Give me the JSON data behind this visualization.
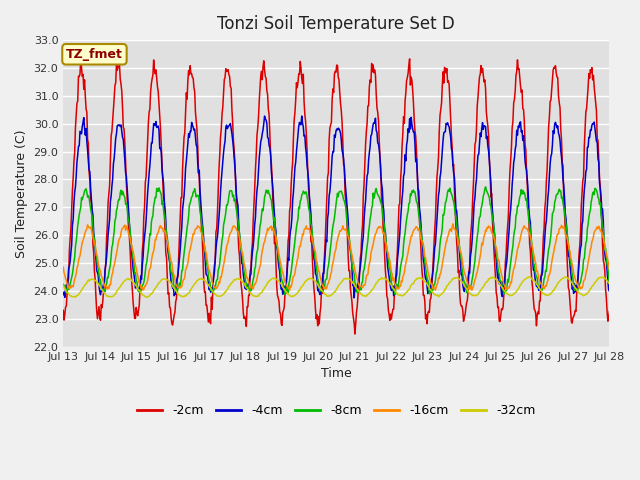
{
  "title": "Tonzi Soil Temperature Set D",
  "xlabel": "Time",
  "ylabel": "Soil Temperature (C)",
  "annotation": "TZ_fmet",
  "ylim": [
    22.0,
    33.0
  ],
  "yticks": [
    22.0,
    23.0,
    24.0,
    25.0,
    26.0,
    27.0,
    28.0,
    29.0,
    30.0,
    31.0,
    32.0,
    33.0
  ],
  "xtick_labels": [
    "Jul 13",
    "Jul 14",
    "Jul 15",
    "Jul 16",
    "Jul 17",
    "Jul 18",
    "Jul 19",
    "Jul 20",
    "Jul 21",
    "Jul 22",
    "Jul 23",
    "Jul 24",
    "Jul 25",
    "Jul 26",
    "Jul 27",
    "Jul 28"
  ],
  "n_days": 15,
  "points_per_day": 48,
  "series_order": [
    "-2cm",
    "-4cm",
    "-8cm",
    "-16cm",
    "-32cm"
  ],
  "series": {
    "-2cm": {
      "color": "#dd0000",
      "base": 27.5,
      "amp": 4.5,
      "phase": 0.0,
      "trend": 0.0
    },
    "-4cm": {
      "color": "#0000cc",
      "base": 27.0,
      "amp": 3.0,
      "phase": 0.25,
      "trend": 0.0
    },
    "-8cm": {
      "color": "#00bb00",
      "base": 25.8,
      "amp": 1.8,
      "phase": 0.7,
      "trend": 0.0
    },
    "-16cm": {
      "color": "#ff8800",
      "base": 25.2,
      "amp": 1.1,
      "phase": 1.2,
      "trend": 0.0
    },
    "-32cm": {
      "color": "#cccc00",
      "base": 24.1,
      "amp": 0.32,
      "phase": 1.8,
      "trend": 0.005
    }
  },
  "fig_bg_color": "#f0f0f0",
  "plot_bg_color": "#e0e0e0",
  "grid_color": "#ffffff",
  "legend_ncol": 5
}
